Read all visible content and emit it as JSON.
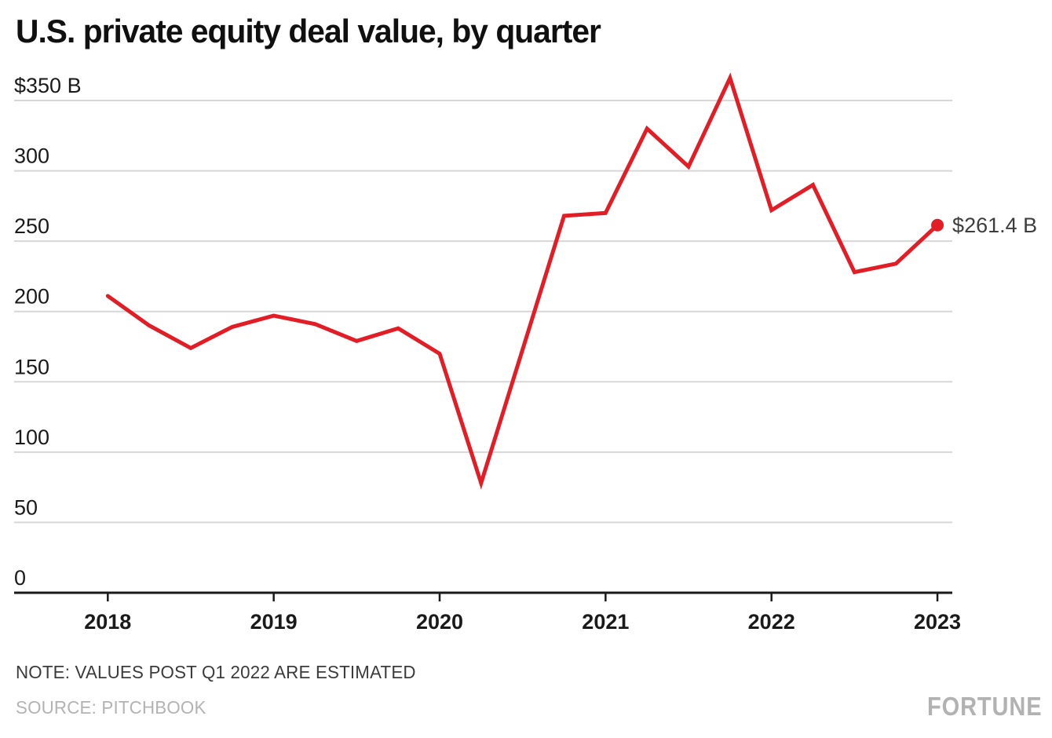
{
  "header": {
    "title": "U.S. private equity deal value, by quarter"
  },
  "footer": {
    "note": "NOTE: VALUES POST Q1 2022 ARE ESTIMATED",
    "source": "SOURCE: PITCHBOOK",
    "brand": "FORTUNE"
  },
  "colors": {
    "line": "#e21d25",
    "grid": "#d7d7d7",
    "axis": "#1a1a1a",
    "tick_text": "#1a1a1a",
    "note_text": "#3b3b3b",
    "muted_text": "#b3b3b3",
    "end_label_text": "#3d3d3d"
  },
  "chart_data": {
    "type": "line",
    "title": "U.S. private equity deal value, by quarter",
    "unit": "billions of U.S. dollars",
    "series_name": "U.S. private equity deal value",
    "x": [
      "Q1 2018",
      "Q2 2018",
      "Q3 2018",
      "Q4 2018",
      "Q1 2019",
      "Q2 2019",
      "Q3 2019",
      "Q4 2019",
      "Q1 2020",
      "Q2 2020",
      "Q3 2020",
      "Q4 2020",
      "Q1 2021",
      "Q2 2021",
      "Q3 2021",
      "Q4 2021",
      "Q1 2022",
      "Q2 2022",
      "Q3 2022",
      "Q4 2022",
      "Q1 2023"
    ],
    "values": [
      211,
      190,
      174,
      189,
      197,
      191,
      179,
      188,
      170,
      78,
      173,
      268,
      270,
      330,
      303,
      366,
      272,
      290,
      228,
      234,
      261.4
    ],
    "end_label": "$261.4 B",
    "ylim": [
      0,
      350
    ],
    "ytick_step": 50,
    "ytick_labels": [
      "$350 B",
      "300",
      "250",
      "200",
      "150",
      "100",
      "50",
      "0"
    ],
    "xtick_labels": [
      "2018",
      "2019",
      "2020",
      "2021",
      "2022",
      "2023"
    ],
    "grid": "horizontal-only",
    "legend": "none",
    "annotations": [
      "$261.4 B marker on final point, Q1 2023"
    ]
  }
}
